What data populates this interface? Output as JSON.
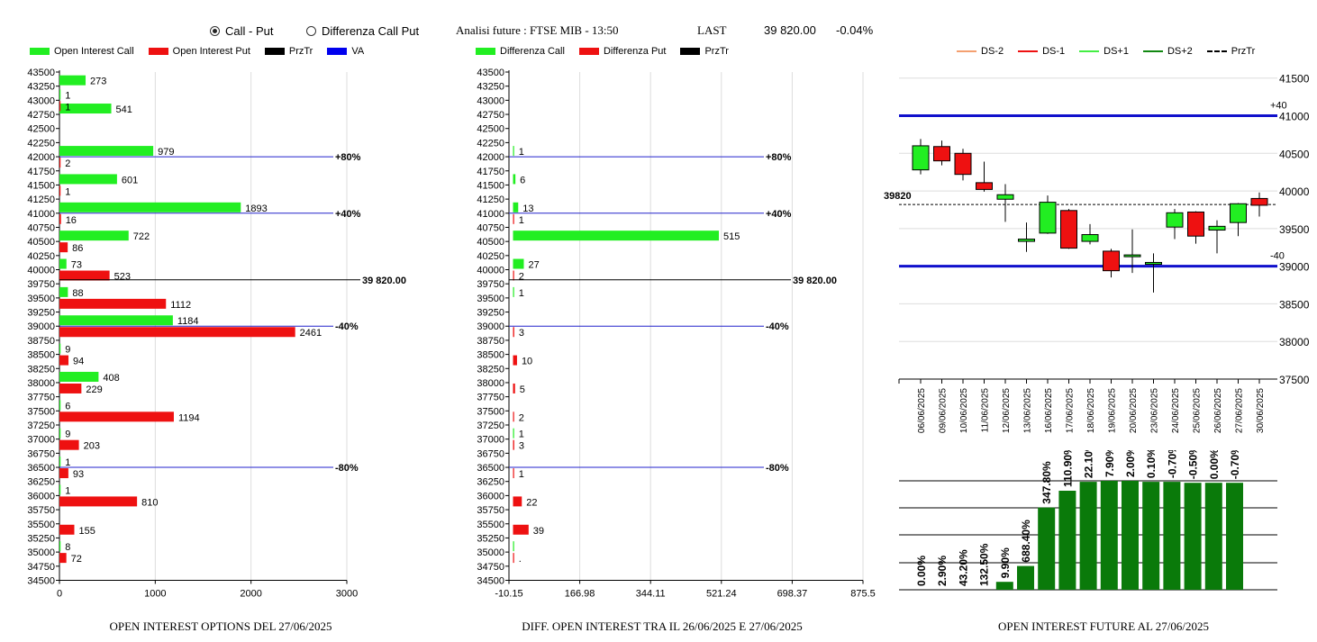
{
  "header": {
    "radio_call_put": "Call - Put",
    "radio_diff": "Differenza Call Put",
    "analisi": "Analisi future : FTSE MIB - 13:50",
    "last_label": "LAST",
    "last_value": "39 820.00",
    "last_change": "-0.04%"
  },
  "legend_oi": [
    {
      "label": "Open Interest Call",
      "color": "#22ee22",
      "kind": "box"
    },
    {
      "label": "Open Interest Put",
      "color": "#ee1111",
      "kind": "box"
    },
    {
      "label": "PrzTr",
      "color": "#000000",
      "kind": "box"
    },
    {
      "label": "VA",
      "color": "#0000ee",
      "kind": "box"
    }
  ],
  "legend_diff": [
    {
      "label": "Differenza Call",
      "color": "#22ee22",
      "kind": "box"
    },
    {
      "label": "Differenza Put",
      "color": "#ee1111",
      "kind": "box"
    },
    {
      "label": "PrzTr",
      "color": "#000000",
      "kind": "box"
    }
  ],
  "legend_ds": [
    {
      "label": "DS-2",
      "color": "#f4a070",
      "kind": "line"
    },
    {
      "label": "DS-1",
      "color": "#ee1111",
      "kind": "line"
    },
    {
      "label": "DS+1",
      "color": "#44ee44",
      "kind": "line"
    },
    {
      "label": "DS+2",
      "color": "#118811",
      "kind": "line"
    },
    {
      "label": "PrzTr",
      "color": "#000000",
      "kind": "dash"
    }
  ],
  "captions": {
    "oi": "OPEN INTEREST OPTIONS DEL 27/06/2025",
    "diff": "DIFF. OPEN INTEREST TRA IL 26/06/2025 E 27/06/2025",
    "future": "OPEN INTEREST FUTURE AL 27/06/2025"
  },
  "chart_data": [
    {
      "type": "bar",
      "orientation": "horizontal",
      "title": "OPEN INTEREST OPTIONS DEL 27/06/2025",
      "strikes": [
        "43500",
        "43250",
        "43000",
        "42750",
        "42500",
        "42250",
        "42000",
        "41750",
        "41500",
        "41250",
        "41000",
        "40750",
        "40500",
        "40250",
        "40000",
        "39750",
        "39500",
        "39250",
        "39000",
        "38750",
        "38500",
        "38250",
        "38000",
        "37750",
        "37500",
        "37250",
        "37000",
        "36750",
        "36500",
        "36250",
        "36000",
        "35750",
        "35500",
        "35250",
        "35000",
        "34750",
        "34500"
      ],
      "xlim": [
        0,
        3000
      ],
      "xticks": [
        "0",
        "1000",
        "2000",
        "3000"
      ],
      "series": [
        {
          "name": "Open Interest Call",
          "values": [
            {
              "strike": "43250",
              "value": 273,
              "label": "273"
            },
            {
              "strike": "43000",
              "value": 1,
              "label": "1"
            },
            {
              "strike": "42750",
              "value": 541,
              "label": "541"
            },
            {
              "strike": "42000",
              "value": 979,
              "label": "979"
            },
            {
              "strike": "41500",
              "value": 601,
              "label": "601"
            },
            {
              "strike": "41000",
              "value": 1893,
              "label": "1893"
            },
            {
              "strike": "40500",
              "value": 722,
              "label": "722"
            },
            {
              "strike": "40000",
              "value": 73,
              "label": "73"
            },
            {
              "strike": "39500",
              "value": 88,
              "label": "88"
            },
            {
              "strike": "39000",
              "value": 1184,
              "label": "1184"
            },
            {
              "strike": "38500",
              "value": 9,
              "label": "9"
            },
            {
              "strike": "38000",
              "value": 408,
              "label": "408"
            },
            {
              "strike": "37500",
              "value": 6,
              "label": "6"
            },
            {
              "strike": "37000",
              "value": 9,
              "label": "9"
            },
            {
              "strike": "36500",
              "value": 1,
              "label": "1"
            },
            {
              "strike": "36000",
              "value": 1,
              "label": "1"
            },
            {
              "strike": "35000",
              "value": 8,
              "label": "8"
            }
          ]
        },
        {
          "name": "Open Interest Put",
          "values": [
            {
              "strike": "43000",
              "value": 1,
              "label": "1"
            },
            {
              "strike": "42000",
              "value": 2,
              "label": "2"
            },
            {
              "strike": "41500",
              "value": 1,
              "label": "1"
            },
            {
              "strike": "41000",
              "value": 16,
              "label": "16"
            },
            {
              "strike": "40500",
              "value": 86,
              "label": "86"
            },
            {
              "strike": "40000",
              "value": 523,
              "label": "523"
            },
            {
              "strike": "39500",
              "value": 1112,
              "label": "1112"
            },
            {
              "strike": "39000",
              "value": 2461,
              "label": "2461"
            },
            {
              "strike": "38500",
              "value": 94,
              "label": "94"
            },
            {
              "strike": "38000",
              "value": 229,
              "label": "229"
            },
            {
              "strike": "37500",
              "value": 1194,
              "label": "1194"
            },
            {
              "strike": "37000",
              "value": 203,
              "label": "203"
            },
            {
              "strike": "36500",
              "value": 93,
              "label": "93"
            },
            {
              "strike": "36000",
              "value": 810,
              "label": "810"
            },
            {
              "strike": "35500",
              "value": 155,
              "label": "155"
            },
            {
              "strike": "35000",
              "value": 72,
              "label": "72"
            }
          ]
        }
      ],
      "reference_lines": [
        {
          "strike": 42000,
          "label": "+80%",
          "color": "#2222cc"
        },
        {
          "strike": 41000,
          "label": "+40%",
          "color": "#2222cc"
        },
        {
          "strike": 39820,
          "label": "39 820.00",
          "color": "#000000"
        },
        {
          "strike": 39000,
          "label": "-40%",
          "color": "#2222cc"
        },
        {
          "strike": 36500,
          "label": "-80%",
          "color": "#2222cc"
        }
      ]
    },
    {
      "type": "bar",
      "orientation": "horizontal",
      "title": "DIFF. OPEN INTEREST TRA IL 26/06/2025 E 27/06/2025",
      "strikes": [
        "43500",
        "43250",
        "43000",
        "42750",
        "42500",
        "42250",
        "42000",
        "41750",
        "41500",
        "41250",
        "41000",
        "40750",
        "40500",
        "40250",
        "40000",
        "39750",
        "39500",
        "39250",
        "39000",
        "38750",
        "38500",
        "38250",
        "38000",
        "37750",
        "37500",
        "37250",
        "37000",
        "36750",
        "36500",
        "36250",
        "36000",
        "35750",
        "35500",
        "35250",
        "35000",
        "34750",
        "34500"
      ],
      "xlim": [
        -10.15,
        875.5
      ],
      "xticks": [
        "-10.15",
        "166.98",
        "344.11",
        "521.24",
        "698.37",
        "875.5"
      ],
      "series": [
        {
          "name": "Differenza Call",
          "values": [
            {
              "strike": "42000",
              "value": 1,
              "label": "1"
            },
            {
              "strike": "41500",
              "value": 6,
              "label": "6"
            },
            {
              "strike": "41000",
              "value": 13,
              "label": "13"
            },
            {
              "strike": "40500",
              "value": 515,
              "label": "515"
            },
            {
              "strike": "40000",
              "value": 27,
              "label": "27"
            },
            {
              "strike": "39500",
              "value": 1,
              "label": "1"
            },
            {
              "strike": "37000",
              "value": 1,
              "label": "1"
            },
            {
              "strike": "35000",
              "value": 1,
              "label": ""
            }
          ]
        },
        {
          "name": "Differenza Put",
          "values": [
            {
              "strike": "41000",
              "value": 1,
              "label": "1"
            },
            {
              "strike": "40000",
              "value": 2,
              "label": "2"
            },
            {
              "strike": "39000",
              "value": 3,
              "label": "3"
            },
            {
              "strike": "38500",
              "value": 10,
              "label": "10"
            },
            {
              "strike": "38000",
              "value": 5,
              "label": "5"
            },
            {
              "strike": "37500",
              "value": 2,
              "label": "2"
            },
            {
              "strike": "37000",
              "value": 3,
              "label": "3"
            },
            {
              "strike": "36500",
              "value": 1,
              "label": "1"
            },
            {
              "strike": "36000",
              "value": 22,
              "label": "22"
            },
            {
              "strike": "35500",
              "value": 39,
              "label": "39"
            },
            {
              "strike": "35000",
              "value": 2,
              "label": "."
            }
          ]
        }
      ],
      "reference_lines": [
        {
          "strike": 42000,
          "label": "+80%",
          "color": "#2222cc"
        },
        {
          "strike": 41000,
          "label": "+40%",
          "color": "#2222cc"
        },
        {
          "strike": 39820,
          "label": "39 820.00",
          "color": "#000000"
        },
        {
          "strike": 39000,
          "label": "-40%",
          "color": "#2222cc"
        },
        {
          "strike": 36500,
          "label": "-80%",
          "color": "#2222cc"
        }
      ]
    },
    {
      "type": "candlestick",
      "ylim": [
        37500,
        41700
      ],
      "yticks": [
        "41500",
        "41000",
        "40500",
        "40000",
        "39500",
        "39000",
        "38500",
        "38000",
        "37500"
      ],
      "dates": [
        "06/06/2025",
        "09/06/2025",
        "10/06/2025",
        "11/06/2025",
        "12/06/2025",
        "13/06/2025",
        "16/06/2025",
        "17/06/2025",
        "18/06/2025",
        "19/06/2025",
        "20/06/2025",
        "23/06/2025",
        "24/06/2025",
        "25/06/2025",
        "26/06/2025",
        "27/06/2025",
        "30/06/2025"
      ],
      "candles": [
        {
          "date": "06/06/2025",
          "open": 40280,
          "high": 40690,
          "low": 40220,
          "close": 40600
        },
        {
          "date": "09/06/2025",
          "open": 40590,
          "high": 40670,
          "low": 40340,
          "close": 40400
        },
        {
          "date": "10/06/2025",
          "open": 40500,
          "high": 40560,
          "low": 40140,
          "close": 40220
        },
        {
          "date": "11/06/2025",
          "open": 40110,
          "high": 40390,
          "low": 39990,
          "close": 40020
        },
        {
          "date": "12/06/2025",
          "open": 39890,
          "high": 40090,
          "low": 39590,
          "close": 39950
        },
        {
          "date": "13/06/2025",
          "open": 39330,
          "high": 39580,
          "low": 39190,
          "close": 39360
        },
        {
          "date": "16/06/2025",
          "open": 39440,
          "high": 39940,
          "low": 39430,
          "close": 39850
        },
        {
          "date": "17/06/2025",
          "open": 39740,
          "high": 39760,
          "low": 39230,
          "close": 39240
        },
        {
          "date": "18/06/2025",
          "open": 39330,
          "high": 39560,
          "low": 39290,
          "close": 39420
        },
        {
          "date": "19/06/2025",
          "open": 39200,
          "high": 39230,
          "low": 38850,
          "close": 38940
        },
        {
          "date": "20/06/2025",
          "open": 39130,
          "high": 39490,
          "low": 38910,
          "close": 39150
        },
        {
          "date": "23/06/2025",
          "open": 39030,
          "high": 39170,
          "low": 38650,
          "close": 39050
        },
        {
          "date": "24/06/2025",
          "open": 39520,
          "high": 39760,
          "low": 39360,
          "close": 39710
        },
        {
          "date": "25/06/2025",
          "open": 39720,
          "high": 39730,
          "low": 39300,
          "close": 39400
        },
        {
          "date": "26/06/2025",
          "open": 39480,
          "high": 39610,
          "low": 39170,
          "close": 39530
        },
        {
          "date": "27/06/2025",
          "open": 39580,
          "high": 39840,
          "low": 39400,
          "close": 39830
        },
        {
          "date": "30/06/2025",
          "open": 39900,
          "high": 39980,
          "low": 39660,
          "close": 39810
        }
      ],
      "reference_lines": [
        {
          "value": 41000,
          "label": "+40",
          "color": "#1010cc"
        },
        {
          "value": 39000,
          "label": "-40",
          "color": "#1010cc"
        },
        {
          "value": 39820,
          "label": "39820",
          "color": "#000000",
          "dashed": true
        }
      ]
    },
    {
      "type": "bar",
      "title": "OPEN INTEREST FUTURE AL 27/06/2025",
      "labels": [
        "0.00%",
        "2.90%",
        "43.20%",
        "132.50%",
        "9.90%",
        "688.40%",
        "347.80%",
        "110.90%",
        "22.10%",
        "7.90%",
        "2.00%",
        "0.10%",
        "-0.70%",
        "-0.50%",
        "0.00%",
        "-0.70%"
      ],
      "values": [
        0,
        0,
        0,
        0,
        8,
        24,
        83,
        100,
        109,
        110,
        110,
        109,
        109,
        108,
        108,
        108
      ]
    }
  ]
}
